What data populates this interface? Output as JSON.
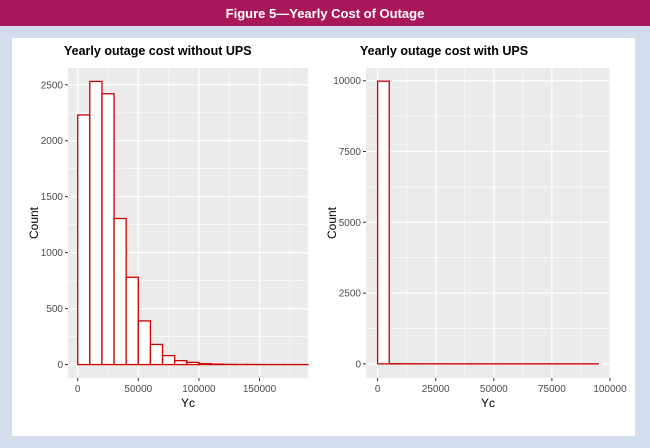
{
  "figure": {
    "title": "Figure 5—Yearly Cost of Outage"
  },
  "colors": {
    "banner": "#a8185a",
    "frame": "#d3dcea",
    "panel_bg": "#ebebeb",
    "grid": "#ffffff",
    "bar_stroke": "#cc0000",
    "bar_fill": "#ffffff"
  },
  "chart_data": [
    {
      "type": "bar",
      "title": "Yearly outage cost without UPS",
      "xlabel": "Yc",
      "ylabel": "Count",
      "xlim": [
        -8000,
        190000
      ],
      "ylim": [
        -120,
        2650
      ],
      "xticks": [
        0,
        50000,
        100000,
        150000
      ],
      "xtick_labels": [
        "0",
        "50000",
        "100000",
        "150000"
      ],
      "yticks": [
        0,
        500,
        1000,
        1500,
        2000,
        2500
      ],
      "ytick_labels": [
        "0",
        "500",
        "1000",
        "1500",
        "2000",
        "2500"
      ],
      "grid": true,
      "bin_width": 10000,
      "bins_start": [
        0,
        10000,
        20000,
        30000,
        40000,
        50000,
        60000,
        70000,
        80000,
        90000,
        100000,
        110000,
        120000,
        130000,
        140000,
        150000,
        160000,
        170000,
        180000
      ],
      "values": [
        2230,
        2530,
        2420,
        1305,
        780,
        390,
        180,
        80,
        35,
        20,
        8,
        4,
        2,
        1,
        1,
        0,
        0,
        0,
        0
      ]
    },
    {
      "type": "bar",
      "title": "Yearly outage cost with UPS",
      "xlabel": "Yc",
      "ylabel": "Count",
      "xlim": [
        -5000,
        100000
      ],
      "ylim": [
        -500,
        10450
      ],
      "xticks": [
        0,
        25000,
        50000,
        75000,
        100000
      ],
      "xtick_labels": [
        "0",
        "25000",
        "50000",
        "75000",
        "100000"
      ],
      "yticks": [
        0,
        2500,
        5000,
        7500,
        10000
      ],
      "ytick_labels": [
        "0",
        "2500",
        "5000",
        "7500",
        "10000"
      ],
      "grid": true,
      "bin_width": 5000,
      "bins_start": [
        0,
        5000,
        10000,
        15000,
        20000,
        25000,
        30000,
        35000,
        40000,
        45000,
        50000,
        55000,
        60000,
        65000,
        70000,
        75000,
        80000,
        85000,
        90000
      ],
      "values": [
        9985,
        6,
        3,
        2,
        1,
        1,
        1,
        0,
        0,
        0,
        0,
        0,
        0,
        0,
        1,
        0,
        0,
        0,
        0
      ]
    }
  ]
}
